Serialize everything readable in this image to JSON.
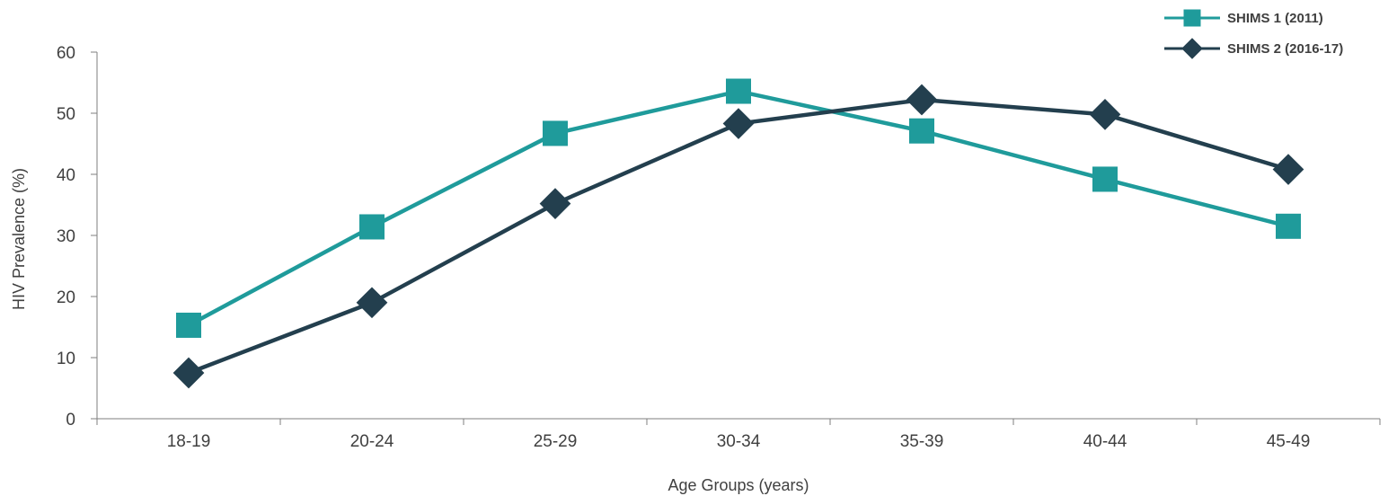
{
  "chart_data": {
    "type": "line",
    "title": "",
    "xlabel": "Age Groups (years)",
    "ylabel": "HIV Prevalence (%)",
    "categories": [
      "18-19",
      "20-24",
      "25-29",
      "30-34",
      "35-39",
      "40-44",
      "45-49"
    ],
    "ylim": [
      0,
      60
    ],
    "yticks": [
      0,
      10,
      20,
      30,
      40,
      50,
      60
    ],
    "grid": false,
    "legend_position": "top-right",
    "series": [
      {
        "name": "SHIMS 1 (2011)",
        "marker": "square",
        "color": "#1f9b9b",
        "values": [
          15.3,
          31.4,
          46.7,
          53.6,
          47.1,
          39.2,
          31.5
        ]
      },
      {
        "name": "SHIMS 2 (2016-17)",
        "marker": "diamond",
        "color": "#233f4e",
        "values": [
          7.5,
          19.0,
          35.2,
          48.3,
          52.2,
          49.8,
          40.8
        ]
      }
    ]
  }
}
